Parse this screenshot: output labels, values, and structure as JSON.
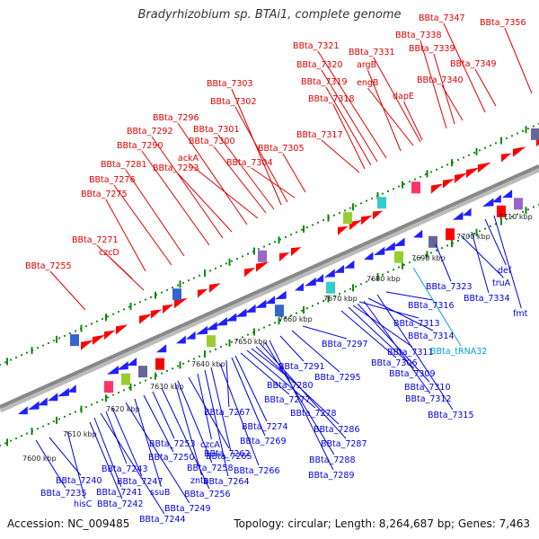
{
  "title": "Bradyrhizobium sp. BTAi1, complete genome",
  "footer": {
    "accession": "Accession: NC_009485",
    "summary": "Topology: circular; Length: 8,264,687 bp; Genes: 7,463"
  },
  "colors": {
    "forward_label": "#e00000",
    "reverse_label": "#0000e0",
    "rna_label": "#00a0d8",
    "forward_feature": "#ff0000",
    "reverse_feature": "#1f1fff",
    "backbone": "#888888",
    "tick": "#0a8a0a"
  },
  "scale": {
    "ticks": [
      "7600 kbp",
      "7610 kbp",
      "7620 kbp",
      "7630 kbp",
      "7640 kbp",
      "7650 kbp",
      "7660 kbp",
      "7670 kbp",
      "7680 kbp",
      "7690 kbp",
      "7700 kbp",
      "7710 kbp"
    ]
  },
  "forward_labels": [
    "BBta_7255",
    "czcD",
    "BBta_7271",
    "BBta_7275",
    "BBta_7276",
    "BBta_7281",
    "BBta_7290",
    "BBta_7292",
    "BBta_7293",
    "BBta_7296",
    "ackA",
    "BBta_7300",
    "BBta_7301",
    "BBta_7302",
    "BBta_7303",
    "BBta_7304",
    "BBta_7305",
    "BBta_7317",
    "BBta_7318",
    "BBta_7319",
    "BBta_7320",
    "BBta_7321",
    "argB",
    "engB",
    "BBta_7331",
    "dapE",
    "BBta_7338",
    "BBta_7339",
    "BBta_7340",
    "BBta_7347",
    "BBta_7349",
    "BBta_7356"
  ],
  "reverse_labels": [
    "BBta_7235",
    "hisC",
    "BBta_7240",
    "BBta_7242",
    "BBta_7241",
    "BBta_7243",
    "BBta_7244",
    "BBta_7247",
    "BBta_7249",
    "ssuB",
    "BBta_7250",
    "BBta_7253",
    "BBta_7256",
    "znta",
    "BBta_7258",
    "BBta_7262",
    "czcA",
    "BBta_7264",
    "BBta_7265",
    "BBta_7266",
    "BBta_7267",
    "BBta_7269",
    "BBta_7274",
    "BBta_7277",
    "BBta_7278",
    "BBta_7280",
    "BBta_7286",
    "BBta_7287",
    "BBta_7288",
    "BBta_7289",
    "BBta_7291",
    "BBta_7295",
    "BBta_7297",
    "BBta_7306",
    "BBta_7309",
    "BBta_7310",
    "BBta_7311",
    "BBta_7312",
    "BBta_7313",
    "BBta_7314",
    "BBta_7315",
    "BBta_7316",
    "BBta_tRNA32",
    "BBta_7323",
    "truA",
    "BBta_7334",
    "def",
    "fmt"
  ]
}
